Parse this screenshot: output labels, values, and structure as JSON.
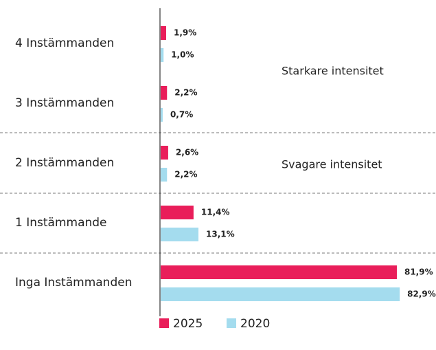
{
  "chart_data": {
    "type": "bar",
    "orientation": "horizontal",
    "categories": [
      "4 Instämmanden",
      "3 Instämmanden",
      "2 Instämmanden",
      "1 Instämmande",
      "Inga Instämmanden"
    ],
    "series": [
      {
        "name": "2025",
        "color": "#e91e5a",
        "values": [
          1.9,
          2.2,
          2.6,
          11.4,
          81.9
        ],
        "value_labels": [
          "1,9%",
          "2,2%",
          "2,6%",
          "11,4%",
          "81,9%"
        ]
      },
      {
        "name": "2020",
        "color": "#a4dcee",
        "values": [
          1.0,
          0.7,
          2.2,
          13.1,
          82.9
        ],
        "value_labels": [
          "1,0%",
          "0,7%",
          "2,2%",
          "13,1%",
          "82,9%"
        ]
      }
    ],
    "xlim": [
      0,
      95
    ],
    "annotations": [
      "Starkare intensitet",
      "Svagare intensitet"
    ]
  }
}
